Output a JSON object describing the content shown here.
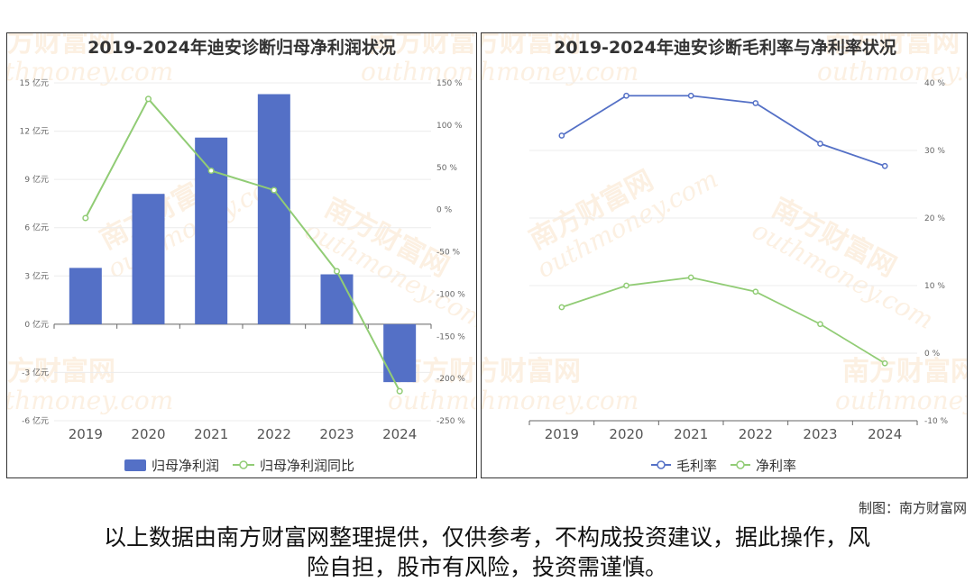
{
  "chart_data": [
    {
      "type": "bar+line",
      "title": "2019-2024年迪安诊断归母净利润状况",
      "categories": [
        "2019",
        "2020",
        "2021",
        "2022",
        "2023",
        "2024"
      ],
      "series": [
        {
          "name": "归母净利润",
          "type": "bar",
          "axis": "left",
          "values": [
            3.5,
            8.1,
            11.6,
            14.3,
            3.1,
            -3.6
          ]
        },
        {
          "name": "归母净利润同比",
          "type": "line",
          "axis": "right",
          "values": [
            -10,
            131,
            46,
            23,
            -73,
            -215
          ]
        }
      ],
      "y_left": {
        "ylim": [
          -6,
          15
        ],
        "ticks": [
          "-6 亿元",
          "-3 亿元",
          "0 亿元",
          "3 亿元",
          "6 亿元",
          "9 亿元",
          "12 亿元",
          "15 亿元"
        ]
      },
      "y_right": {
        "ylim": [
          -250,
          150
        ],
        "ticks": [
          "-250 %",
          "-200 %",
          "-150 %",
          "-100 %",
          "-50 %",
          "0 %",
          "50 %",
          "100 %",
          "150 %"
        ]
      },
      "legend_position": "bottom",
      "colors": {
        "bar": "#5470c6",
        "line": "#91cc75"
      }
    },
    {
      "type": "line",
      "title": "2019-2024年迪安诊断毛利率与净利率状况",
      "categories": [
        "2019",
        "2020",
        "2021",
        "2022",
        "2023",
        "2024"
      ],
      "series": [
        {
          "name": "毛利率",
          "values": [
            32.2,
            38.1,
            38.1,
            37.0,
            31.0,
            27.7
          ]
        },
        {
          "name": "净利率",
          "values": [
            6.8,
            10.0,
            11.2,
            9.1,
            4.3,
            -1.5
          ]
        }
      ],
      "y_right": {
        "ylim": [
          -10,
          40
        ],
        "ticks": [
          "-10 %",
          "0 %",
          "10 %",
          "20 %",
          "30 %",
          "40 %"
        ]
      },
      "legend_position": "bottom",
      "colors": {
        "series1": "#5470c6",
        "series2": "#91cc75"
      }
    }
  ],
  "watermark": {
    "cn": "南方财富网",
    "en": "outhmoney.com"
  },
  "credit": "制图：南方财富网",
  "disclaimer": [
    "以上数据由南方财富网整理提供，仅供参考，不构成投资建议，据此操作，风",
    "险自担，股市有风险，投资需谨慎。"
  ]
}
